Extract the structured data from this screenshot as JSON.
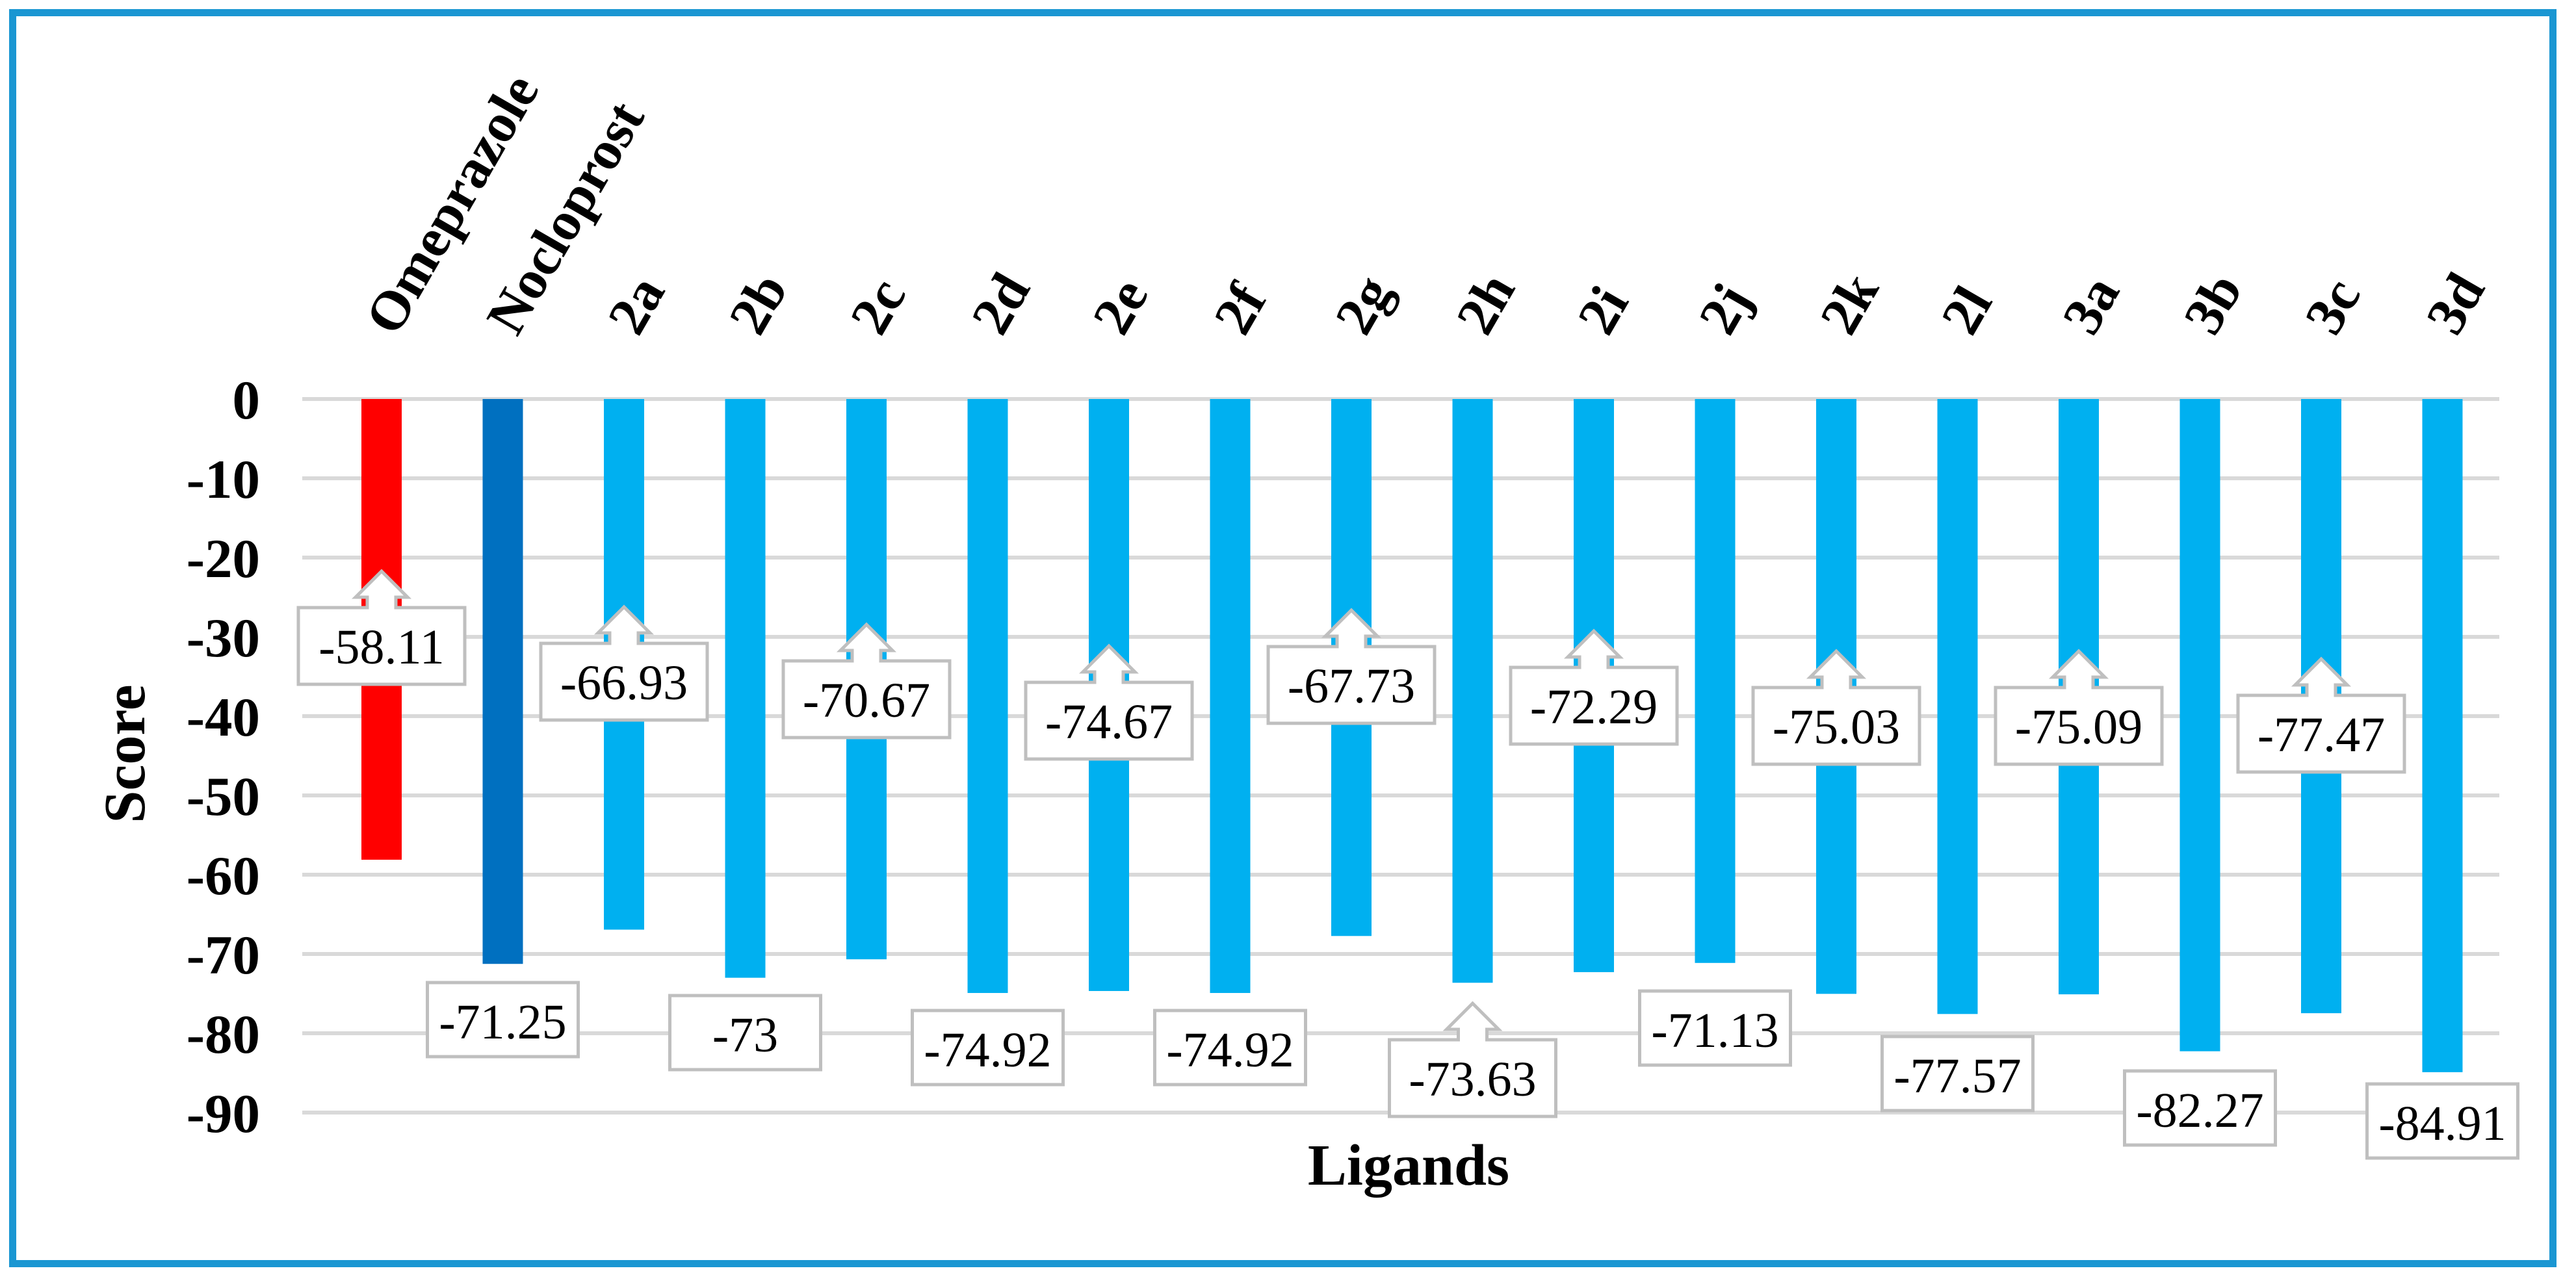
{
  "chart_data": {
    "type": "bar",
    "title": "",
    "xlabel": "Ligands",
    "ylabel": "Score",
    "ylim": [
      -90,
      0
    ],
    "yticks": [
      0,
      -10,
      -20,
      -30,
      -40,
      -50,
      -60,
      -70,
      -80,
      -90
    ],
    "grid": true,
    "legend": "none",
    "categories": [
      "Omeprazole",
      "Nocloprost",
      "2a",
      "2b",
      "2c",
      "2d",
      "2e",
      "2f",
      "2g",
      "2h",
      "2i",
      "2j",
      "2k",
      "2l",
      "3a",
      "3b",
      "3c",
      "3d"
    ],
    "values": [
      -58.11,
      -71.25,
      -66.93,
      -73,
      -70.67,
      -74.92,
      -74.67,
      -74.92,
      -67.73,
      -73.63,
      -72.29,
      -71.13,
      -75.03,
      -77.57,
      -75.09,
      -82.27,
      -77.47,
      -84.91
    ],
    "value_labels": [
      "-58.11",
      "-71.25",
      "-66.93",
      "-73",
      "-70.67",
      "-74.92",
      "-74.67",
      "-74.92",
      "-67.73",
      "-73.63",
      "-72.29",
      "-71.13",
      "-75.03",
      "-77.57",
      "-75.09",
      "-82.27",
      "-77.47",
      "-84.91"
    ],
    "bar_colors": [
      "#ff0000",
      "#0070c0",
      "#00b0f0",
      "#00b0f0",
      "#00b0f0",
      "#00b0f0",
      "#00b0f0",
      "#00b0f0",
      "#00b0f0",
      "#00b0f0",
      "#00b0f0",
      "#00b0f0",
      "#00b0f0",
      "#00b0f0",
      "#00b0f0",
      "#00b0f0",
      "#00b0f0",
      "#00b0f0"
    ]
  },
  "colors": {
    "frame": "#1a96d2",
    "grid": "#d9d9d9",
    "label_border": "#bfbfbf"
  }
}
